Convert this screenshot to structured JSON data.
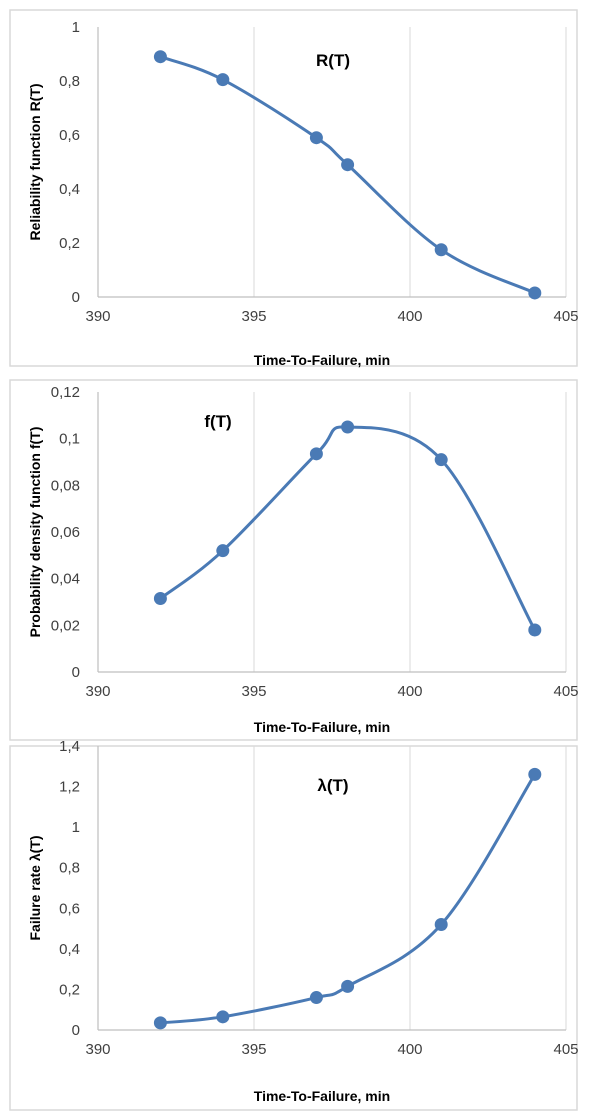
{
  "chart_data": [
    {
      "type": "line",
      "title": "R(T)",
      "xlabel": "Time-To-Failure, min",
      "ylabel": "Reliability function R(T)",
      "xlim": [
        390,
        405
      ],
      "ylim": [
        0,
        1
      ],
      "x_ticks": [
        "390",
        "395",
        "400",
        "405"
      ],
      "y_ticks": [
        "0",
        "0,2",
        "0,4",
        "0,6",
        "0,8",
        "1"
      ],
      "grid": "vertical",
      "series": [
        {
          "x": [
            392,
            394,
            397,
            398,
            401,
            404
          ],
          "y": [
            0.89,
            0.805,
            0.59,
            0.49,
            0.175,
            0.015
          ]
        }
      ],
      "color": "#4a7ab5"
    },
    {
      "type": "line",
      "title": "f(T)",
      "xlabel": "Time-To-Failure, min",
      "ylabel": "Probability density function f(T)",
      "xlim": [
        390,
        405
      ],
      "ylim": [
        0,
        0.12
      ],
      "x_ticks": [
        "390",
        "395",
        "400",
        "405"
      ],
      "y_ticks": [
        "0",
        "0,02",
        "0,04",
        "0,06",
        "0,08",
        "0,1",
        "0,12"
      ],
      "grid": "vertical",
      "series": [
        {
          "x": [
            392,
            394,
            397,
            398,
            401,
            404
          ],
          "y": [
            0.0315,
            0.052,
            0.0935,
            0.105,
            0.091,
            0.018
          ]
        }
      ],
      "color": "#4a7ab5"
    },
    {
      "type": "line",
      "title": "λ(T)",
      "xlabel": "Time-To-Failure, min",
      "ylabel": "Failure rate λ(T)",
      "xlim": [
        390,
        405
      ],
      "ylim": [
        0,
        1.4
      ],
      "x_ticks": [
        "390",
        "395",
        "400",
        "405"
      ],
      "y_ticks": [
        "0",
        "0,2",
        "0,4",
        "0,6",
        "0,8",
        "1",
        "1,2",
        "1,4"
      ],
      "grid": "vertical",
      "series": [
        {
          "x": [
            392,
            394,
            397,
            398,
            401,
            404
          ],
          "y": [
            0.035,
            0.065,
            0.16,
            0.215,
            0.52,
            1.26
          ]
        }
      ],
      "color": "#4a7ab5"
    }
  ]
}
